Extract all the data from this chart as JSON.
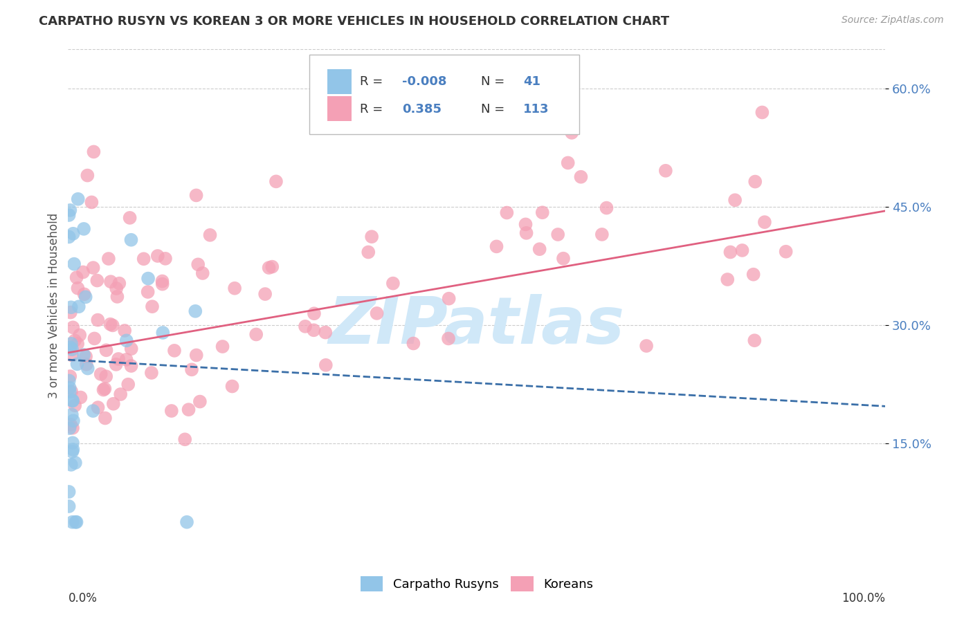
{
  "title": "CARPATHO RUSYN VS KOREAN 3 OR MORE VEHICLES IN HOUSEHOLD CORRELATION CHART",
  "source": "Source: ZipAtlas.com",
  "ylabel": "3 or more Vehicles in Household",
  "legend_label1": "Carpatho Rusyns",
  "legend_label2": "Koreans",
  "xlim": [
    0.0,
    1.0
  ],
  "ylim": [
    0.0,
    0.65
  ],
  "yticks": [
    0.15,
    0.3,
    0.45,
    0.6
  ],
  "ytick_labels": [
    "15.0%",
    "30.0%",
    "45.0%",
    "60.0%"
  ],
  "color_blue": "#92C5E8",
  "color_pink": "#F4A0B5",
  "color_blue_line": "#3A6FA8",
  "color_pink_line": "#E06080",
  "background": "#FFFFFF",
  "grid_color": "#CCCCCC",
  "watermark": "ZIPatlas",
  "watermark_color": "#D0E8F8",
  "r_blue": -0.008,
  "n_blue": 41,
  "r_pink": 0.385,
  "n_pink": 113,
  "blue_line_x0": 0.0,
  "blue_line_x1": 1.0,
  "blue_line_y0": 0.256,
  "blue_line_y1": 0.197,
  "pink_line_x0": 0.0,
  "pink_line_x1": 1.0,
  "pink_line_y0": 0.265,
  "pink_line_y1": 0.445
}
